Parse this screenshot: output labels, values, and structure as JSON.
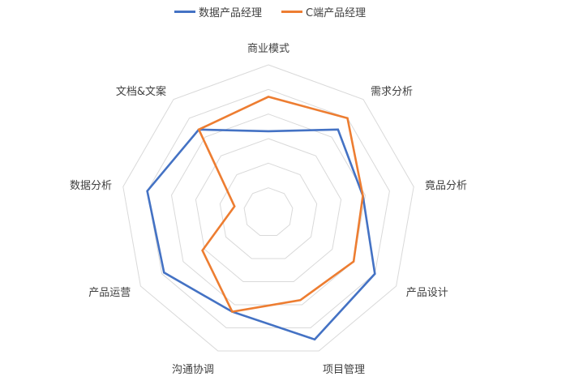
{
  "chart_data": {
    "type": "radar",
    "categories": [
      "商业模式",
      "需求分析",
      "竟品分析",
      "产品设计",
      "项目管理",
      "沟通协调",
      "产品运营",
      "数据分析",
      "文档&文案"
    ],
    "series": [
      {
        "name": "数据产品经理",
        "color": "#4472c4",
        "values": [
          3.3,
          4.4,
          3.9,
          5.0,
          5.5,
          4.3,
          4.9,
          5.0,
          4.4
        ]
      },
      {
        "name": "C端产品经理",
        "color": "#ed7d31",
        "values": [
          4.7,
          5.0,
          3.9,
          4.0,
          3.8,
          4.3,
          3.1,
          1.4,
          4.4
        ]
      }
    ],
    "rmax": 6,
    "rings": 6,
    "grid": true,
    "legend_position": "top"
  }
}
